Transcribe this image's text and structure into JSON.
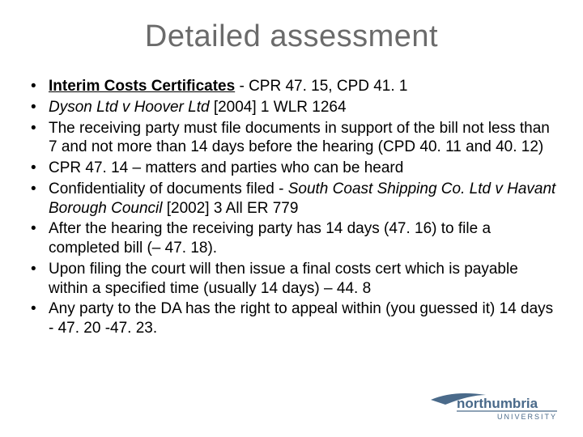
{
  "title": "Detailed assessment",
  "title_color": "#6b6b6b",
  "title_fontsize": 38,
  "body_fontsize": 19,
  "background_color": "#ffffff",
  "text_color": "#000000",
  "bullets": [
    {
      "segments": [
        {
          "text": "Interim Costs Certificates",
          "style": "bu"
        },
        {
          "text": " - CPR 47. 15, CPD 41. 1",
          "style": ""
        }
      ]
    },
    {
      "segments": [
        {
          "text": "Dyson Ltd  v Hoover Ltd ",
          "style": "i"
        },
        {
          "text": "[2004] 1 WLR 1264",
          "style": ""
        }
      ]
    },
    {
      "segments": [
        {
          "text": "The receiving party must file documents in support of the bill not less than 7 and not more than 14 days before the hearing (CPD 40. 11 and 40. 12)",
          "style": ""
        }
      ]
    },
    {
      "segments": [
        {
          "text": " CPR 47. 14 – matters and parties who can be heard",
          "style": ""
        }
      ]
    },
    {
      "segments": [
        {
          "text": "Confidentiality of documents filed -  ",
          "style": ""
        },
        {
          "text": "South Coast Shipping Co. Ltd v Havant Borough Council ",
          "style": "i"
        },
        {
          "text": "[2002] 3 All ER 779",
          "style": ""
        }
      ]
    },
    {
      "segments": [
        {
          "text": "After the hearing the receiving party has 14 days (47. 16) to file a completed bill (– 47. 18).",
          "style": ""
        }
      ]
    },
    {
      "segments": [
        {
          "text": "Upon filing the court will then issue a final costs cert which is payable within a specified time (usually 14 days) – 44. 8",
          "style": ""
        }
      ]
    },
    {
      "segments": [
        {
          "text": "Any party to the DA has the right to appeal within (you guessed it) 14 days - 47. 20 -47. 23.",
          "style": ""
        }
      ]
    }
  ],
  "logo": {
    "name": "northumbria-university-logo",
    "text_top": "northumbria",
    "text_bottom": "UNIVERSITY",
    "swoosh_color": "#4a6a8a",
    "underline_color": "#4a6a8a",
    "text_color": "#4a6a8a"
  }
}
